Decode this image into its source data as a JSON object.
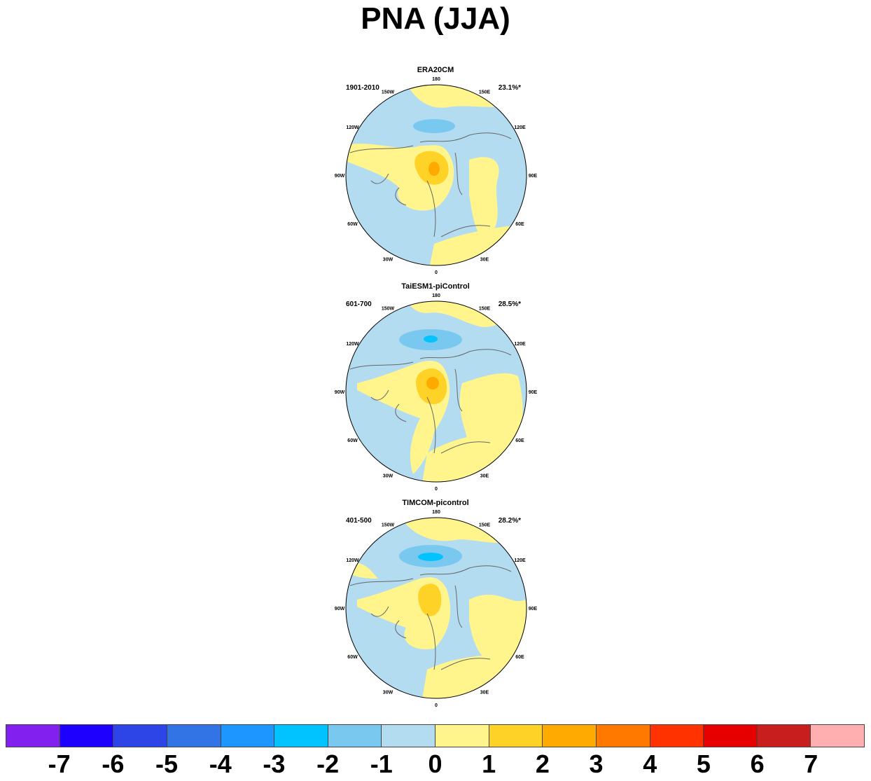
{
  "title": "PNA (JJA)",
  "panels": [
    {
      "name": "ERA20CM",
      "period": "1901-2010",
      "variance": "23.1%*",
      "lon_labels": [
        "180",
        "150E",
        "120E",
        "90E",
        "60E",
        "30E",
        "0",
        "30W",
        "60W",
        "90W",
        "120W",
        "150W"
      ]
    },
    {
      "name": "TaiESM1-piControl",
      "period": "601-700",
      "variance": "28.5%*",
      "lon_labels": [
        "180",
        "150E",
        "120E",
        "90E",
        "60E",
        "30E",
        "0",
        "30W",
        "60W",
        "90W",
        "120W",
        "150W"
      ]
    },
    {
      "name": "TIMCOM-picontrol",
      "period": "401-500",
      "variance": "28.2%*",
      "lon_labels": [
        "180",
        "150E",
        "120E",
        "90E",
        "60E",
        "30E",
        "0",
        "30W",
        "60W",
        "90W",
        "120W",
        "150W"
      ]
    }
  ],
  "colorbar": {
    "colors": [
      "#8220f0",
      "#1e00ff",
      "#2d45e6",
      "#3273e6",
      "#1e96ff",
      "#00c3ff",
      "#78c8f0",
      "#b4dcf0",
      "#fff58c",
      "#ffd228",
      "#ffaa00",
      "#ff7800",
      "#ff3200",
      "#e60000",
      "#c81e1e",
      "#ffafaf"
    ],
    "labels": [
      "-7",
      "-6",
      "-5",
      "-4",
      "-3",
      "-2",
      "-1",
      "0",
      "1",
      "2",
      "3",
      "4",
      "5",
      "6",
      "7"
    ]
  }
}
